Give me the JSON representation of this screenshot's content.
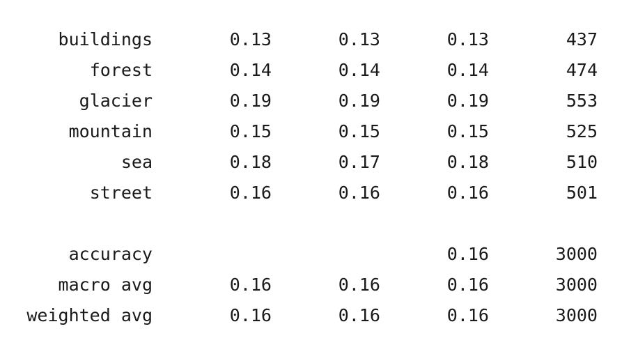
{
  "classes": [
    {
      "label": "buildings",
      "precision": "0.13",
      "recall": "0.13",
      "f1": "0.13",
      "support": "437"
    },
    {
      "label": "forest",
      "precision": "0.14",
      "recall": "0.14",
      "f1": "0.14",
      "support": "474"
    },
    {
      "label": "glacier",
      "precision": "0.19",
      "recall": "0.19",
      "f1": "0.19",
      "support": "553"
    },
    {
      "label": "mountain",
      "precision": "0.15",
      "recall": "0.15",
      "f1": "0.15",
      "support": "525"
    },
    {
      "label": "sea",
      "precision": "0.18",
      "recall": "0.17",
      "f1": "0.18",
      "support": "510"
    },
    {
      "label": "street",
      "precision": "0.16",
      "recall": "0.16",
      "f1": "0.16",
      "support": "501"
    }
  ],
  "summary": [
    {
      "label": "accuracy",
      "precision": "",
      "recall": "",
      "f1": "0.16",
      "support": "3000"
    },
    {
      "label": "macro avg",
      "precision": "0.16",
      "recall": "0.16",
      "f1": "0.16",
      "support": "3000"
    },
    {
      "label": "weighted avg",
      "precision": "0.16",
      "recall": "0.16",
      "f1": "0.16",
      "support": "3000"
    }
  ]
}
